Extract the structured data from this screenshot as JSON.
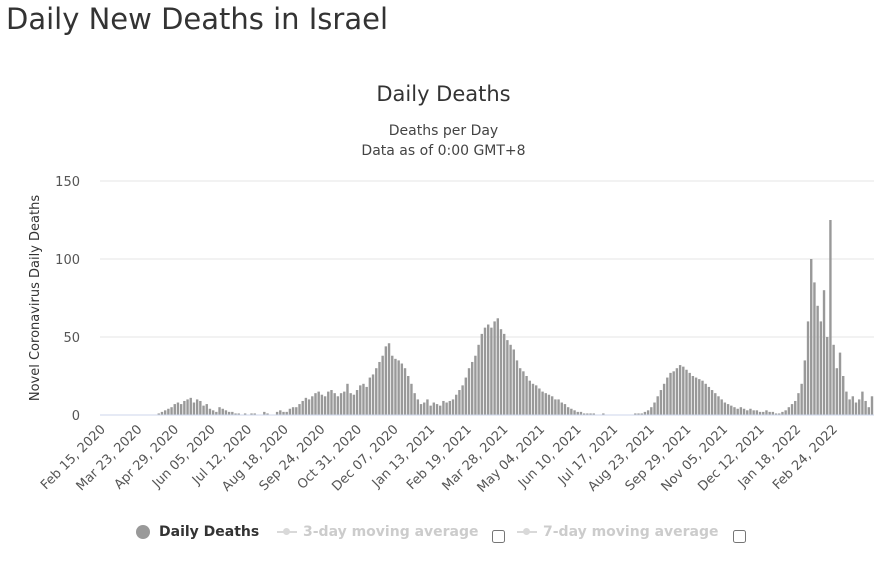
{
  "page": {
    "heading": "Daily New Deaths in Israel"
  },
  "chart_data": {
    "type": "bar",
    "title": "Daily Deaths",
    "subtitle_line1": "Deaths per Day",
    "subtitle_line2": "Data as of 0:00 GMT+8",
    "ylabel": "Novel Coronavirus Daily Deaths",
    "xlabel": "",
    "ylim": [
      0,
      150
    ],
    "yticks": [
      0,
      50,
      100,
      150
    ],
    "grid": true,
    "legend_position": "bottom",
    "bar_color": "#999999",
    "x_tick_labels": [
      "Feb 15, 2020",
      "Mar 23, 2020",
      "Apr 29, 2020",
      "Jun 05, 2020",
      "Jul 12, 2020",
      "Aug 18, 2020",
      "Sep 24, 2020",
      "Oct 31, 2020",
      "Dec 07, 2020",
      "Jan 13, 2021",
      "Feb 19, 2021",
      "Mar 28, 2021",
      "May 04, 2021",
      "Jun 10, 2021",
      "Jul 17, 2021",
      "Aug 23, 2021",
      "Sep 29, 2021",
      "Nov 05, 2021",
      "Dec 12, 2021",
      "Jan 18, 2022",
      "Feb 24, 2022"
    ],
    "series": [
      {
        "name": "Daily Deaths",
        "interval_days": 2,
        "start_date": "2020-02-15",
        "end_date": "2022-03-29",
        "values": [
          0,
          0,
          0,
          0,
          0,
          0,
          0,
          0,
          0,
          0,
          0,
          0,
          0,
          0,
          0,
          0,
          0,
          0,
          1,
          2,
          3,
          4,
          5,
          7,
          8,
          7,
          9,
          10,
          11,
          8,
          10,
          9,
          6,
          7,
          4,
          3,
          2,
          5,
          4,
          3,
          2,
          2,
          1,
          1,
          0,
          1,
          0,
          1,
          1,
          0,
          0,
          2,
          1,
          0,
          0,
          2,
          3,
          2,
          2,
          4,
          5,
          5,
          7,
          9,
          11,
          10,
          12,
          14,
          15,
          13,
          12,
          15,
          16,
          14,
          12,
          14,
          15,
          20,
          14,
          13,
          16,
          19,
          20,
          18,
          24,
          26,
          30,
          34,
          38,
          44,
          46,
          38,
          36,
          35,
          33,
          30,
          25,
          20,
          14,
          10,
          7,
          8,
          10,
          6,
          8,
          7,
          6,
          9,
          8,
          9,
          10,
          13,
          16,
          19,
          24,
          30,
          34,
          38,
          45,
          52,
          56,
          58,
          56,
          60,
          62,
          55,
          52,
          48,
          45,
          42,
          35,
          30,
          28,
          25,
          22,
          20,
          19,
          17,
          15,
          14,
          13,
          12,
          10,
          10,
          8,
          7,
          5,
          4,
          3,
          2,
          2,
          1,
          1,
          1,
          1,
          0,
          0,
          1,
          0,
          0,
          0,
          0,
          0,
          0,
          0,
          0,
          0,
          1,
          1,
          1,
          2,
          3,
          5,
          8,
          12,
          16,
          20,
          24,
          27,
          28,
          30,
          32,
          31,
          29,
          27,
          25,
          24,
          23,
          22,
          20,
          18,
          16,
          14,
          12,
          10,
          8,
          7,
          6,
          5,
          4,
          5,
          4,
          3,
          4,
          3,
          3,
          2,
          2,
          3,
          2,
          2,
          1,
          1,
          2,
          3,
          5,
          7,
          9,
          14,
          20,
          35,
          60,
          100,
          85,
          70,
          60,
          80,
          50,
          125,
          45,
          30,
          40,
          25,
          15,
          10,
          12,
          8,
          10,
          15,
          9,
          5,
          12
        ]
      }
    ]
  },
  "legend": {
    "items": [
      {
        "label": "Daily Deaths",
        "color": "#999999",
        "active": true
      },
      {
        "label": "3-day moving average",
        "color": "#cccccc",
        "active": false
      },
      {
        "label": "7-day moving average",
        "color": "#cccccc",
        "active": false
      }
    ]
  }
}
